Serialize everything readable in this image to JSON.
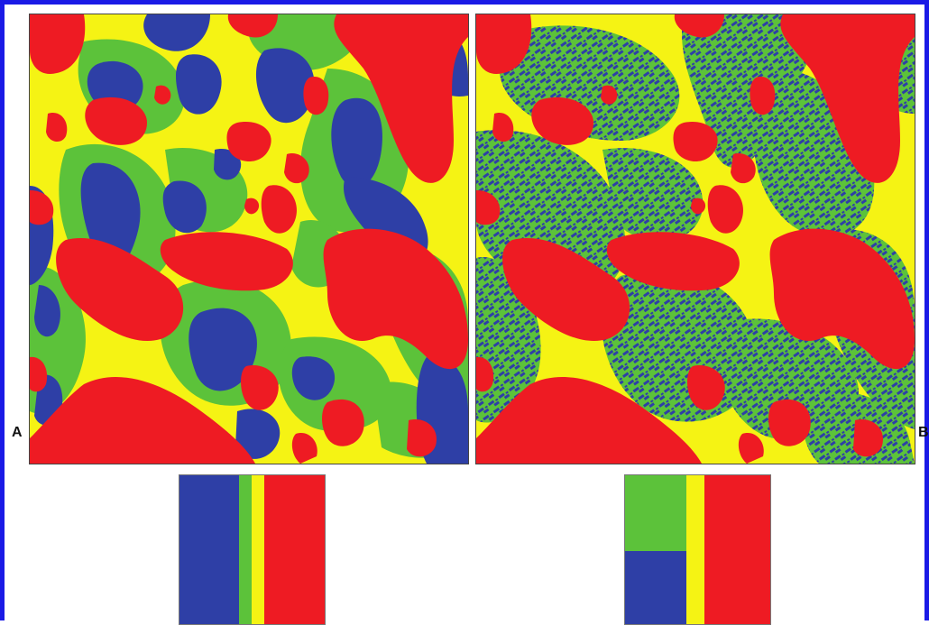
{
  "figure": {
    "panel_a": {
      "label": "A"
    },
    "panel_b": {
      "label": "B"
    }
  },
  "colors": {
    "red": "#ee1b23",
    "yellow": "#f5f314",
    "green": "#5cc23a",
    "blue": "#2e3fa6",
    "frame": "#1a1ae6"
  }
}
